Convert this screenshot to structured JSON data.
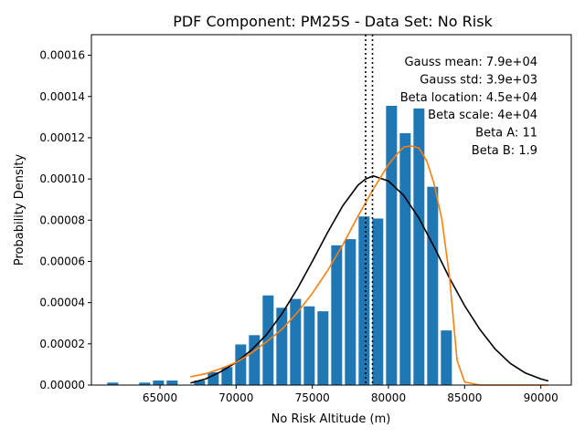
{
  "chart_data": {
    "type": "bar",
    "title": "PDF Component: PM25S - Data Set: No Risk",
    "xlabel": "No Risk Altitude (m)",
    "ylabel": "Probability Density",
    "xlim": [
      60500,
      92000
    ],
    "ylim": [
      0,
      0.00017
    ],
    "xticks": [
      65000,
      70000,
      75000,
      80000,
      85000,
      90000
    ],
    "xtick_labels": [
      "65000",
      "70000",
      "75000",
      "80000",
      "85000",
      "90000"
    ],
    "yticks": [
      0,
      2e-05,
      4e-05,
      6e-05,
      8e-05,
      0.0001,
      0.00012,
      0.00014,
      0.00016
    ],
    "ytick_labels": [
      "0.00000",
      "0.00002",
      "0.00004",
      "0.00006",
      "0.00008",
      "0.00010",
      "0.00012",
      "0.00014",
      "0.00016"
    ],
    "bar_width": 720,
    "bars": {
      "x": [
        61900,
        64000,
        64900,
        65800,
        67600,
        68500,
        69400,
        70300,
        71200,
        72100,
        73000,
        73900,
        74800,
        75700,
        76600,
        77500,
        78400,
        79300,
        80200,
        81100,
        82000,
        82900,
        83800
      ],
      "y": [
        1.2e-06,
        1.2e-06,
        2.2e-06,
        2.2e-06,
        2.2e-06,
        6.2e-06,
        8.7e-06,
        1.97e-05,
        2.42e-05,
        4.35e-05,
        3.75e-05,
        4.18e-05,
        3.82e-05,
        3.58e-05,
        6.78e-05,
        7.08e-05,
        8.18e-05,
        8.08e-05,
        0.0001355,
        0.0001222,
        0.0001342,
        9.62e-05,
        2.65e-05
      ],
      "color": "#1f77b4"
    },
    "series": [
      {
        "type": "line",
        "color": "#000000",
        "x": [
          67000,
          68000,
          69000,
          70000,
          71000,
          72000,
          73000,
          74000,
          75000,
          76000,
          77000,
          78000,
          78500,
          79000,
          80000,
          81000,
          82000,
          83000,
          84000,
          85000,
          86000,
          87000,
          88000,
          89000,
          90000,
          90500
        ],
        "y": [
          1e-06,
          3e-06,
          6.5e-06,
          1.1e-05,
          1.7e-05,
          2.45e-05,
          3.45e-05,
          4.65e-05,
          6e-05,
          7.4e-05,
          8.7e-05,
          9.7e-05,
          0.0001,
          0.0001015,
          9.9e-05,
          9.2e-05,
          8.1e-05,
          6.7e-05,
          5.2e-05,
          3.85e-05,
          2.7e-05,
          1.75e-05,
          1.05e-05,
          5.8e-06,
          3e-06,
          2e-06
        ]
      },
      {
        "type": "line",
        "color": "#ff7f0e",
        "x": [
          67000,
          68000,
          69000,
          70000,
          71000,
          72000,
          73000,
          74000,
          75000,
          76000,
          77000,
          78000,
          79000,
          80000,
          80500,
          81000,
          81500,
          82000,
          82500,
          83000,
          83500,
          84000,
          84500,
          85000,
          86000,
          88000,
          90500
        ],
        "y": [
          4e-06,
          5.5e-06,
          8e-06,
          1.1e-05,
          1.55e-05,
          2.1e-05,
          2.7e-05,
          3.5e-05,
          4.45e-05,
          5.55e-05,
          6.8e-05,
          8.2e-05,
          9.5e-05,
          0.000107,
          0.0001115,
          0.0001155,
          0.000116,
          0.000115,
          0.000109,
          9.75e-05,
          8.05e-05,
          5.3e-05,
          1.2e-05,
          1.5e-06,
          0,
          0,
          0
        ]
      }
    ],
    "vlines": [
      {
        "x": 78500,
        "style": "dotted",
        "color": "#000000"
      },
      {
        "x": 78950,
        "style": "dotted",
        "color": "#000000"
      }
    ],
    "annotations": [
      "Gauss mean: 7.9e+04",
      "Gauss std: 3.9e+03",
      "Beta location: 4.5e+04",
      "Beta scale: 4e+04",
      "Beta A: 11",
      "Beta B: 1.9"
    ],
    "annotation_position": "top-right",
    "grid": false,
    "legend": false
  }
}
